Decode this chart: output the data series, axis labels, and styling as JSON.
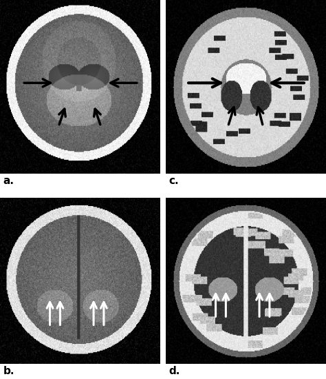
{
  "figure_width": 4.74,
  "figure_height": 5.5,
  "dpi": 100,
  "background_color": "#ffffff",
  "panel_labels": [
    "a.",
    "b.",
    "c.",
    "d."
  ],
  "label_fontsize": 11,
  "label_color": "#000000",
  "label_bold": true,
  "separator_color": "#ffffff",
  "separator_linewidth": 3,
  "panel_bg_b": "#000000",
  "panel_bg_d": "#000000"
}
